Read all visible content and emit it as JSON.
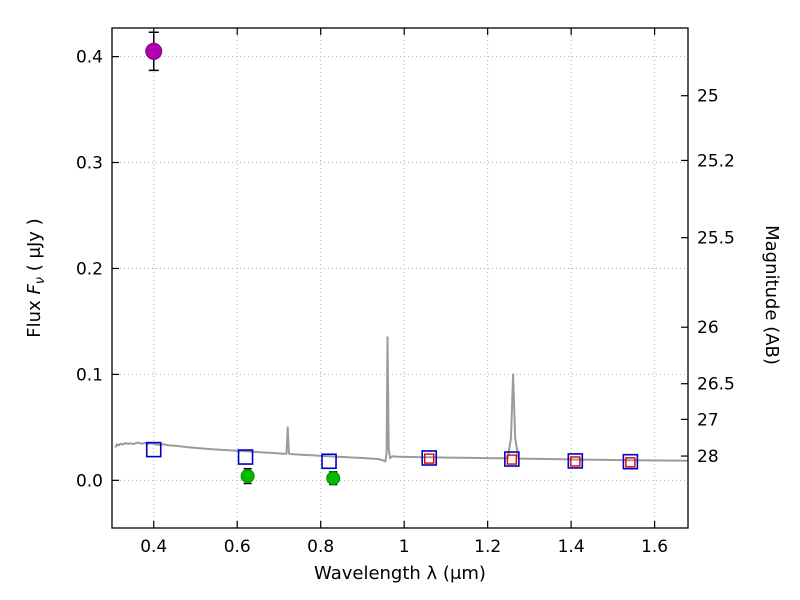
{
  "chart_data": {
    "type": "line",
    "title": "",
    "xlabel": "Wavelength  λ (μm)",
    "ylabel_left": "Flux  Fν  ( μJy )",
    "ylabel_right": "Magnitude (AB)",
    "xlim": [
      0.3,
      1.68
    ],
    "ylim_flux": [
      -0.045,
      0.427
    ],
    "grid": true,
    "x_ticks": {
      "values": [
        0.4,
        0.6,
        0.8,
        1.0,
        1.2,
        1.4,
        1.6
      ],
      "labels": [
        "0.4",
        "0.6",
        "0.8",
        "1",
        "1.2",
        "1.4",
        "1.6"
      ]
    },
    "y_ticks_left": {
      "values": [
        0.0,
        0.1,
        0.2,
        0.3,
        0.4
      ],
      "labels": [
        "0.0",
        "0.1",
        "0.2",
        "0.3",
        "0.4"
      ]
    },
    "y_ticks_right": {
      "values": [
        25,
        25.2,
        25.5,
        26,
        26.5,
        27,
        28
      ],
      "labels": [
        "25",
        "25.2",
        "25.5",
        "26",
        "26.5",
        "27",
        "28"
      ],
      "ab_mag_zeropoint_uJy": 23.9
    },
    "series": [
      {
        "name": "model-spectrum",
        "kind": "line",
        "color": "#9b9b9b",
        "linewidth": 2,
        "points": [
          [
            0.308,
            0.031
          ],
          [
            0.312,
            0.034
          ],
          [
            0.316,
            0.033
          ],
          [
            0.32,
            0.0345
          ],
          [
            0.326,
            0.0338
          ],
          [
            0.332,
            0.0352
          ],
          [
            0.338,
            0.0344
          ],
          [
            0.344,
            0.035
          ],
          [
            0.35,
            0.0342
          ],
          [
            0.356,
            0.035
          ],
          [
            0.362,
            0.0356
          ],
          [
            0.37,
            0.0346
          ],
          [
            0.378,
            0.0352
          ],
          [
            0.386,
            0.0344
          ],
          [
            0.394,
            0.035
          ],
          [
            0.402,
            0.0342
          ],
          [
            0.412,
            0.0336
          ],
          [
            0.424,
            0.034
          ],
          [
            0.436,
            0.033
          ],
          [
            0.45,
            0.0326
          ],
          [
            0.465,
            0.032
          ],
          [
            0.48,
            0.0314
          ],
          [
            0.5,
            0.0306
          ],
          [
            0.52,
            0.03
          ],
          [
            0.54,
            0.0294
          ],
          [
            0.56,
            0.0289
          ],
          [
            0.58,
            0.0284
          ],
          [
            0.6,
            0.0279
          ],
          [
            0.62,
            0.0274
          ],
          [
            0.64,
            0.0269
          ],
          [
            0.66,
            0.0264
          ],
          [
            0.68,
            0.0259
          ],
          [
            0.7,
            0.0254
          ],
          [
            0.712,
            0.025
          ],
          [
            0.718,
            0.0252
          ],
          [
            0.721,
            0.05
          ],
          [
            0.724,
            0.0252
          ],
          [
            0.73,
            0.0248
          ],
          [
            0.745,
            0.0244
          ],
          [
            0.76,
            0.024
          ],
          [
            0.78,
            0.0236
          ],
          [
            0.8,
            0.0231
          ],
          [
            0.82,
            0.0227
          ],
          [
            0.84,
            0.0223
          ],
          [
            0.86,
            0.0219
          ],
          [
            0.88,
            0.0215
          ],
          [
            0.9,
            0.0211
          ],
          [
            0.92,
            0.0206
          ],
          [
            0.938,
            0.02
          ],
          [
            0.948,
            0.019
          ],
          [
            0.955,
            0.0178
          ],
          [
            0.958,
            0.026
          ],
          [
            0.96,
            0.135
          ],
          [
            0.963,
            0.03
          ],
          [
            0.966,
            0.021
          ],
          [
            0.972,
            0.0228
          ],
          [
            0.98,
            0.0224
          ],
          [
            1.0,
            0.0221
          ],
          [
            1.03,
            0.0219
          ],
          [
            1.06,
            0.0217
          ],
          [
            1.1,
            0.0215
          ],
          [
            1.14,
            0.0213
          ],
          [
            1.18,
            0.0211
          ],
          [
            1.22,
            0.0209
          ],
          [
            1.248,
            0.0208
          ],
          [
            1.256,
            0.04
          ],
          [
            1.261,
            0.1
          ],
          [
            1.266,
            0.04
          ],
          [
            1.274,
            0.0206
          ],
          [
            1.3,
            0.0204
          ],
          [
            1.34,
            0.0201
          ],
          [
            1.38,
            0.0199
          ],
          [
            1.42,
            0.0196
          ],
          [
            1.46,
            0.0194
          ],
          [
            1.5,
            0.0192
          ],
          [
            1.54,
            0.019
          ],
          [
            1.58,
            0.0188
          ],
          [
            1.62,
            0.0187
          ],
          [
            1.66,
            0.0186
          ],
          [
            1.68,
            0.0185
          ]
        ]
      },
      {
        "name": "model-photometry-squares",
        "kind": "scatter",
        "marker": "square-open",
        "color": "#0000cc",
        "size": 14,
        "stroke_width": 1.6,
        "points": [
          [
            0.4,
            0.029
          ],
          [
            0.62,
            0.022
          ],
          [
            0.82,
            0.018
          ],
          [
            1.06,
            0.0211
          ],
          [
            1.258,
            0.0201
          ],
          [
            1.41,
            0.0183
          ],
          [
            1.542,
            0.0176
          ]
        ]
      },
      {
        "name": "observed-photometry-squares",
        "kind": "scatter",
        "marker": "square-open",
        "color": "#dd0000",
        "size": 9,
        "stroke_width": 1.4,
        "points": [
          [
            1.06,
            0.0205
          ],
          [
            1.258,
            0.0196
          ],
          [
            1.41,
            0.0178
          ],
          [
            1.542,
            0.017
          ]
        ]
      },
      {
        "name": "detected-point-magenta",
        "kind": "scatter",
        "marker": "circle",
        "color": "#b300b3",
        "edge_color": "#800080",
        "size": 16,
        "errorbar_color": "#000000",
        "cap_halfwidth": 5,
        "points": [
          [
            0.4,
            0.405
          ]
        ],
        "yerr": [
          0.018
        ]
      },
      {
        "name": "faint-points-green",
        "kind": "scatter",
        "marker": "circle",
        "color": "#00bb00",
        "edge_color": "#008f00",
        "size": 13,
        "errorbar_color": "#000000",
        "cap_halfwidth": 4,
        "points": [
          [
            0.625,
            0.004
          ],
          [
            0.83,
            0.002
          ]
        ],
        "yerr": [
          0.007,
          0.006
        ]
      }
    ]
  },
  "style_colors": {
    "frame": "#000000",
    "grid": "#b0b0b0",
    "background": "#ffffff"
  }
}
